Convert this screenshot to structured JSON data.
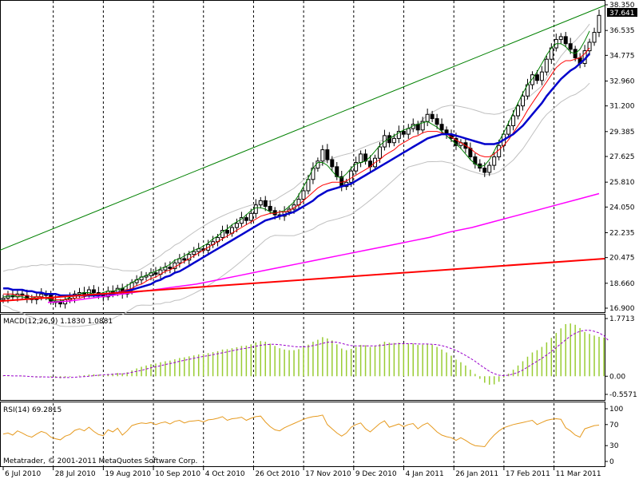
{
  "app": {
    "copyright": "Metatrader, © 2001-2011 MetaQuotes Software Corp."
  },
  "colors": {
    "background": "#ffffff",
    "candle": "#000000",
    "grid": "#000000",
    "upper_trendline": "#008000",
    "lower_trendline": "#ff0000",
    "ma_fast": "#008000",
    "ma_mid": "#ff0000",
    "ma_slow": "#0000cc",
    "ma_long": "#ff00ff",
    "bollinger": "#c0c0c0",
    "macd_hist": "#99cc33",
    "macd_signal": "#9900cc",
    "rsi": "#e69a1f"
  },
  "chart_data": [
    {
      "type": "line",
      "panel": "price",
      "instrument_last_price": "37.641",
      "x_ticks": [
        "6 Jul 2010",
        "28 Jul 2010",
        "19 Aug 2010",
        "10 Sep 2010",
        "4 Oct 2010",
        "26 Oct 2010",
        "17 Nov 2010",
        "9 Dec 2010",
        "4 Jan 2011",
        "26 Jan 2011",
        "17 Feb 2011",
        "11 Mar 2011"
      ],
      "y_ticks": [
        "38.350",
        "36.535",
        "34.775",
        "32.960",
        "31.200",
        "29.385",
        "27.625",
        "25.810",
        "24.050",
        "22.235",
        "20.475",
        "18.660",
        "16.900"
      ],
      "ylim": [
        16.9,
        38.35
      ],
      "close": [
        17.6,
        17.8,
        17.7,
        17.9,
        17.8,
        17.6,
        17.5,
        17.7,
        17.9,
        17.8,
        17.4,
        17.3,
        17.2,
        17.5,
        17.6,
        17.9,
        18.0,
        17.9,
        18.2,
        18.0,
        17.8,
        17.7,
        18.1,
        18.0,
        18.3,
        17.9,
        18.2,
        18.7,
        18.9,
        19.1,
        19.2,
        19.4,
        19.3,
        19.6,
        19.8,
        19.7,
        20.1,
        20.4,
        20.3,
        20.7,
        20.9,
        21.1,
        21.0,
        21.4,
        21.6,
        21.9,
        22.4,
        22.2,
        22.6,
        22.9,
        23.3,
        23.1,
        23.6,
        24.2,
        24.5,
        24.1,
        23.8,
        23.5,
        23.4,
        23.7,
        23.9,
        24.2,
        24.6,
        25.2,
        26.0,
        26.8,
        27.3,
        28.1,
        27.4,
        26.9,
        26.2,
        25.5,
        25.8,
        26.6,
        27.2,
        27.8,
        27.3,
        26.9,
        27.5,
        28.3,
        29.1,
        28.6,
        28.9,
        29.4,
        29.2,
        29.6,
        29.9,
        29.5,
        30.1,
        30.6,
        30.3,
        29.9,
        29.5,
        29.2,
        28.9,
        28.4,
        28.6,
        28.2,
        27.6,
        27.1,
        26.8,
        26.5,
        27.0,
        27.6,
        28.4,
        29.2,
        29.8,
        30.5,
        31.2,
        31.9,
        32.7,
        33.4,
        33.0,
        33.6,
        34.5,
        35.3,
        35.9,
        36.1,
        35.6,
        35.2,
        34.6,
        34.2,
        35.1,
        35.7,
        36.4,
        37.6
      ],
      "series": [
        {
          "name": "MA fast",
          "values": [
            17.7,
            17.7,
            17.8,
            17.7,
            17.7,
            17.6,
            17.6,
            17.7,
            17.7,
            17.6,
            17.5,
            17.4,
            17.4,
            17.5,
            17.7,
            17.8,
            17.9,
            18.0,
            18.0,
            17.9,
            17.9,
            18.0,
            18.1,
            18.1,
            18.2,
            18.3,
            18.5,
            18.7,
            18.9,
            19.1,
            19.2,
            19.4,
            19.5,
            19.7,
            19.8,
            20.0,
            20.3,
            20.4,
            20.6,
            20.8,
            21.0,
            21.1,
            21.3,
            21.5,
            21.8,
            22.0,
            22.3,
            22.5,
            22.8,
            23.0,
            23.2,
            23.5,
            23.8,
            24.0,
            24.0,
            23.9,
            23.7,
            23.6,
            23.7,
            23.8,
            24.1,
            24.4,
            24.9,
            25.5,
            26.1,
            26.8,
            27.2,
            27.2,
            27.0,
            26.6,
            26.2,
            26.1,
            26.4,
            26.8,
            27.1,
            27.2,
            27.3,
            27.6,
            28.0,
            28.4,
            28.7,
            28.9,
            29.1,
            29.3,
            29.5,
            29.6,
            29.8,
            29.9,
            30.0,
            30.1,
            29.9,
            29.7,
            29.4,
            29.1,
            28.8,
            28.5,
            28.2,
            27.8,
            27.4,
            27.1,
            26.9,
            27.0,
            27.4,
            28.0,
            28.7,
            29.3,
            30.0,
            30.7,
            31.4,
            32.1,
            32.7,
            33.1,
            33.6,
            34.2,
            34.8,
            35.3,
            35.6,
            35.6,
            35.4,
            35.0,
            34.9,
            35.2,
            35.8,
            36.5
          ]
        },
        {
          "name": "MA mid",
          "values": [
            17.9,
            17.9,
            17.9,
            17.8,
            17.8,
            17.8,
            17.7,
            17.7,
            17.7,
            17.6,
            17.6,
            17.5,
            17.5,
            17.5,
            17.5,
            17.6,
            17.6,
            17.7,
            17.8,
            17.8,
            17.8,
            17.9,
            17.9,
            17.9,
            18.0,
            18.1,
            18.2,
            18.3,
            18.5,
            18.6,
            18.8,
            19.0,
            19.1,
            19.3,
            19.5,
            19.6,
            19.8,
            20.0,
            20.2,
            20.4,
            20.6,
            20.8,
            21.0,
            21.2,
            21.4,
            21.6,
            21.8,
            22.0,
            22.2,
            22.4,
            22.6,
            22.8,
            23.0,
            23.2,
            23.4,
            23.5,
            23.6,
            23.6,
            23.7,
            23.7,
            23.8,
            24.0,
            24.2,
            24.5,
            24.8,
            25.1,
            25.4,
            25.6,
            25.7,
            25.8,
            25.8,
            25.8,
            25.9,
            26.1,
            26.3,
            26.5,
            26.7,
            26.9,
            27.2,
            27.4,
            27.7,
            27.9,
            28.1,
            28.4,
            28.6,
            28.8,
            29.0,
            29.1,
            29.3,
            29.4,
            29.4,
            29.4,
            29.3,
            29.2,
            29.0,
            28.8,
            28.6,
            28.4,
            28.2,
            27.9,
            27.7,
            27.6,
            27.6,
            27.8,
            28.1,
            28.4,
            28.8,
            29.3,
            29.8,
            30.3,
            30.9,
            31.4,
            31.9,
            32.4,
            32.9,
            33.4,
            33.9,
            34.2,
            34.4,
            34.4,
            34.5,
            34.6,
            34.9,
            35.3
          ]
        },
        {
          "name": "MA slow",
          "values": [
            18.3,
            18.3,
            18.2,
            18.2,
            18.2,
            18.1,
            18.1,
            18.0,
            18.0,
            17.9,
            17.9,
            17.9,
            17.8,
            17.8,
            17.8,
            17.8,
            17.8,
            17.8,
            17.8,
            17.8,
            17.8,
            17.9,
            17.9,
            17.9,
            18.0,
            18.0,
            18.1,
            18.2,
            18.3,
            18.4,
            18.5,
            18.6,
            18.8,
            18.9,
            19.1,
            19.2,
            19.4,
            19.5,
            19.7,
            19.9,
            20.1,
            20.3,
            20.5,
            20.7,
            20.9,
            21.1,
            21.3,
            21.5,
            21.7,
            21.9,
            22.1,
            22.3,
            22.5,
            22.7,
            22.9,
            23.1,
            23.2,
            23.3,
            23.4,
            23.5,
            23.6,
            23.7,
            23.9,
            24.1,
            24.3,
            24.5,
            24.8,
            25.0,
            25.2,
            25.3,
            25.4,
            25.5,
            25.6,
            25.7,
            25.9,
            26.1,
            26.3,
            26.5,
            26.7,
            26.9,
            27.1,
            27.3,
            27.5,
            27.7,
            27.9,
            28.1,
            28.3,
            28.5,
            28.7,
            28.9,
            29.0,
            29.1,
            29.2,
            29.2,
            29.2,
            29.1,
            29.0,
            28.9,
            28.8,
            28.7,
            28.6,
            28.5,
            28.5,
            28.5,
            28.6,
            28.8,
            29.0,
            29.2,
            29.5,
            29.8,
            30.2,
            30.6,
            31.0,
            31.4,
            31.9,
            32.3,
            32.7,
            33.1,
            33.4,
            33.7,
            33.9,
            34.2,
            34.5,
            34.9
          ]
        },
        {
          "name": "MA long",
          "values": [
            17.3,
            17.4,
            17.6,
            17.8,
            18.0,
            18.2,
            18.4,
            18.6,
            18.9,
            19.2,
            19.5,
            19.8,
            20.1,
            20.4,
            20.7,
            21.0,
            21.3,
            21.6,
            21.9,
            22.3,
            22.6,
            23.0,
            23.4,
            23.8,
            24.2,
            24.6,
            25.0
          ]
        },
        {
          "name": "Upper trendline",
          "values": [
            21.0,
            38.3
          ]
        },
        {
          "name": "Lower trendline",
          "values": [
            17.4,
            20.4
          ]
        }
      ]
    },
    {
      "type": "bar",
      "panel": "macd",
      "indicator_label": "MACD(12,26,9) 1.1830 1.0881",
      "y_ticks": [
        "1.7713",
        "0.00",
        "-0.5571"
      ],
      "ylim": [
        -0.5571,
        1.7713
      ],
      "values": [
        0.02,
        0.01,
        0.0,
        0.0,
        0.01,
        0.0,
        -0.02,
        -0.03,
        -0.02,
        0.0,
        -0.03,
        -0.05,
        -0.06,
        -0.04,
        -0.02,
        0.0,
        0.02,
        0.03,
        0.05,
        0.06,
        0.05,
        0.04,
        0.07,
        0.08,
        0.1,
        0.09,
        0.12,
        0.18,
        0.24,
        0.29,
        0.33,
        0.37,
        0.39,
        0.43,
        0.46,
        0.48,
        0.52,
        0.56,
        0.58,
        0.61,
        0.64,
        0.67,
        0.68,
        0.71,
        0.74,
        0.77,
        0.82,
        0.83,
        0.86,
        0.89,
        0.93,
        0.94,
        0.98,
        1.04,
        1.08,
        1.06,
        1.0,
        0.93,
        0.86,
        0.82,
        0.8,
        0.8,
        0.83,
        0.89,
        0.97,
        1.06,
        1.12,
        1.2,
        1.16,
        1.1,
        0.98,
        0.85,
        0.8,
        0.84,
        0.9,
        0.96,
        0.95,
        0.9,
        0.92,
        0.99,
        1.06,
        1.03,
        1.02,
        1.03,
        1.01,
        1.0,
        1.0,
        0.96,
        0.97,
        1.0,
        0.97,
        0.9,
        0.82,
        0.73,
        0.63,
        0.51,
        0.43,
        0.33,
        0.2,
        0.07,
        -0.08,
        -0.2,
        -0.26,
        -0.25,
        -0.17,
        -0.04,
        0.08,
        0.2,
        0.33,
        0.46,
        0.6,
        0.73,
        0.8,
        0.9,
        1.04,
        1.18,
        1.33,
        1.47,
        1.6,
        1.62,
        1.58,
        1.48,
        1.36,
        1.3,
        1.25,
        1.21,
        1.19
      ],
      "series": [
        {
          "name": "signal",
          "values": [
            0.02,
            0.02,
            0.01,
            0.01,
            0.01,
            0.0,
            -0.01,
            -0.02,
            -0.02,
            -0.02,
            -0.03,
            -0.03,
            -0.04,
            -0.04,
            -0.04,
            -0.03,
            -0.02,
            -0.01,
            0.0,
            0.02,
            0.03,
            0.04,
            0.05,
            0.06,
            0.07,
            0.07,
            0.09,
            0.12,
            0.15,
            0.18,
            0.22,
            0.26,
            0.29,
            0.32,
            0.36,
            0.39,
            0.42,
            0.46,
            0.49,
            0.52,
            0.55,
            0.58,
            0.61,
            0.63,
            0.66,
            0.69,
            0.72,
            0.75,
            0.78,
            0.81,
            0.84,
            0.86,
            0.89,
            0.92,
            0.95,
            0.97,
            0.98,
            0.98,
            0.97,
            0.95,
            0.93,
            0.91,
            0.9,
            0.9,
            0.91,
            0.94,
            0.97,
            1.01,
            1.04,
            1.05,
            1.04,
            1.01,
            0.97,
            0.94,
            0.93,
            0.93,
            0.93,
            0.93,
            0.93,
            0.94,
            0.96,
            0.98,
            0.99,
            1.0,
            1.0,
            1.0,
            1.0,
            0.99,
            0.99,
            0.99,
            0.98,
            0.97,
            0.94,
            0.9,
            0.85,
            0.79,
            0.72,
            0.64,
            0.55,
            0.46,
            0.35,
            0.25,
            0.15,
            0.08,
            0.03,
            0.02,
            0.03,
            0.07,
            0.12,
            0.19,
            0.28,
            0.37,
            0.46,
            0.55,
            0.65,
            0.76,
            0.88,
            1.0,
            1.12,
            1.23,
            1.32,
            1.38,
            1.41,
            1.41,
            1.38,
            1.33,
            1.25,
            1.09
          ]
        }
      ]
    },
    {
      "type": "line",
      "panel": "rsi",
      "indicator_label": "RSI(14) 69.2815",
      "y_ticks": [
        "100",
        "70",
        "30",
        "0"
      ],
      "ylim": [
        0,
        100
      ],
      "values": [
        52,
        54,
        50,
        58,
        54,
        49,
        46,
        52,
        57,
        54,
        46,
        43,
        41,
        48,
        51,
        59,
        62,
        58,
        65,
        57,
        51,
        49,
        60,
        56,
        63,
        50,
        58,
        68,
        71,
        73,
        72,
        74,
        70,
        73,
        75,
        71,
        76,
        78,
        73,
        76,
        77,
        78,
        75,
        79,
        80,
        82,
        85,
        78,
        81,
        82,
        84,
        78,
        82,
        85,
        86,
        75,
        66,
        60,
        58,
        64,
        68,
        72,
        76,
        80,
        83,
        85,
        86,
        88,
        70,
        62,
        54,
        48,
        54,
        65,
        70,
        73,
        62,
        56,
        64,
        72,
        77,
        65,
        68,
        71,
        66,
        70,
        72,
        62,
        69,
        73,
        65,
        56,
        50,
        47,
        45,
        40,
        45,
        40,
        34,
        30,
        29,
        28,
        40,
        50,
        58,
        64,
        67,
        70,
        72,
        74,
        76,
        78,
        70,
        74,
        78,
        80,
        81,
        80,
        64,
        58,
        50,
        46,
        62,
        65,
        68,
        69
      ]
    }
  ]
}
